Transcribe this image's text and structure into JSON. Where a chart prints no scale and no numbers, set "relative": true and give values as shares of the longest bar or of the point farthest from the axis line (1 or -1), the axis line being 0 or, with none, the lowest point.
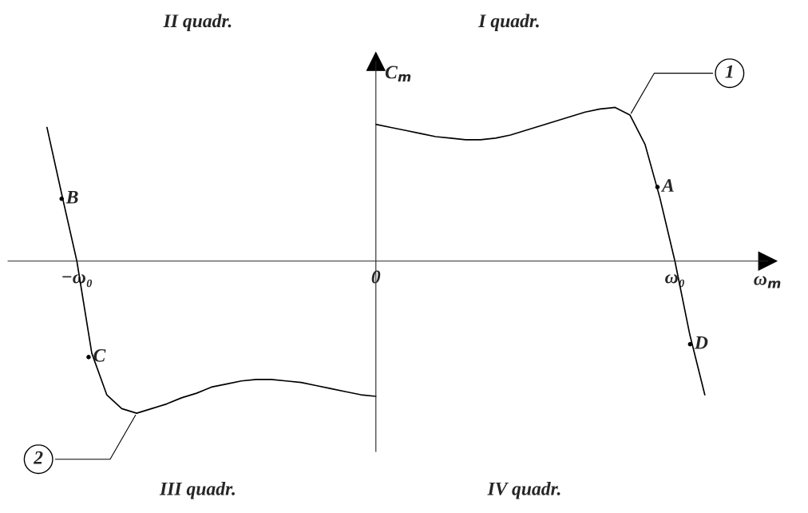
{
  "chart_data": {
    "type": "line",
    "relative": true,
    "xlabel": "ω$_{m}$",
    "ylabel": "C$_{m}$",
    "legend": false,
    "marker": "none",
    "line_style": "solid",
    "categories": [
      null,
      null,
      null,
      null,
      "−ω₀",
      null,
      null,
      null,
      null,
      null,
      null,
      null,
      null,
      null,
      null,
      null,
      null,
      null,
      null,
      null,
      null,
      null,
      null,
      null,
      "0",
      null,
      null,
      null,
      null,
      null,
      null,
      null,
      null,
      null,
      null,
      null,
      null,
      null,
      null,
      null,
      null,
      null,
      null,
      null,
      "ω₀",
      null,
      null,
      null,
      null,
      null,
      null
    ],
    "series": [
      {
        "name": "1",
        "color": "#000000",
        "values": [
          null,
          null,
          null,
          null,
          null,
          null,
          null,
          null,
          null,
          null,
          null,
          null,
          null,
          null,
          null,
          null,
          null,
          null,
          null,
          null,
          null,
          null,
          null,
          null,
          0.89,
          0.87,
          0.85,
          0.83,
          0.81,
          0.8,
          0.79,
          0.79,
          0.8,
          0.82,
          0.85,
          0.88,
          0.91,
          0.94,
          0.97,
          0.99,
          1.0,
          0.95,
          0.76,
          0.41,
          0,
          -0.48,
          -0.87,
          null,
          null,
          null,
          null
        ]
      },
      {
        "name": "2",
        "color": "#000000",
        "values": [
          null,
          null,
          0.87,
          0.43,
          0,
          -0.6,
          -0.87,
          -0.96,
          -0.99,
          -0.96,
          -0.93,
          -0.89,
          -0.86,
          -0.82,
          -0.8,
          -0.78,
          -0.77,
          -0.77,
          -0.78,
          -0.79,
          -0.81,
          -0.83,
          -0.85,
          -0.87,
          -0.88,
          null,
          null,
          null,
          null,
          null,
          null,
          null,
          null,
          null,
          null,
          null,
          null,
          null,
          null,
          null,
          null,
          null,
          null,
          null,
          null,
          null,
          null,
          null,
          null,
          null,
          null
        ]
      }
    ],
    "annotations": [
      "II quadr.",
      "I quadr.",
      "III quadr.",
      "IV quadr.",
      "A",
      "B",
      "C",
      "D"
    ]
  }
}
